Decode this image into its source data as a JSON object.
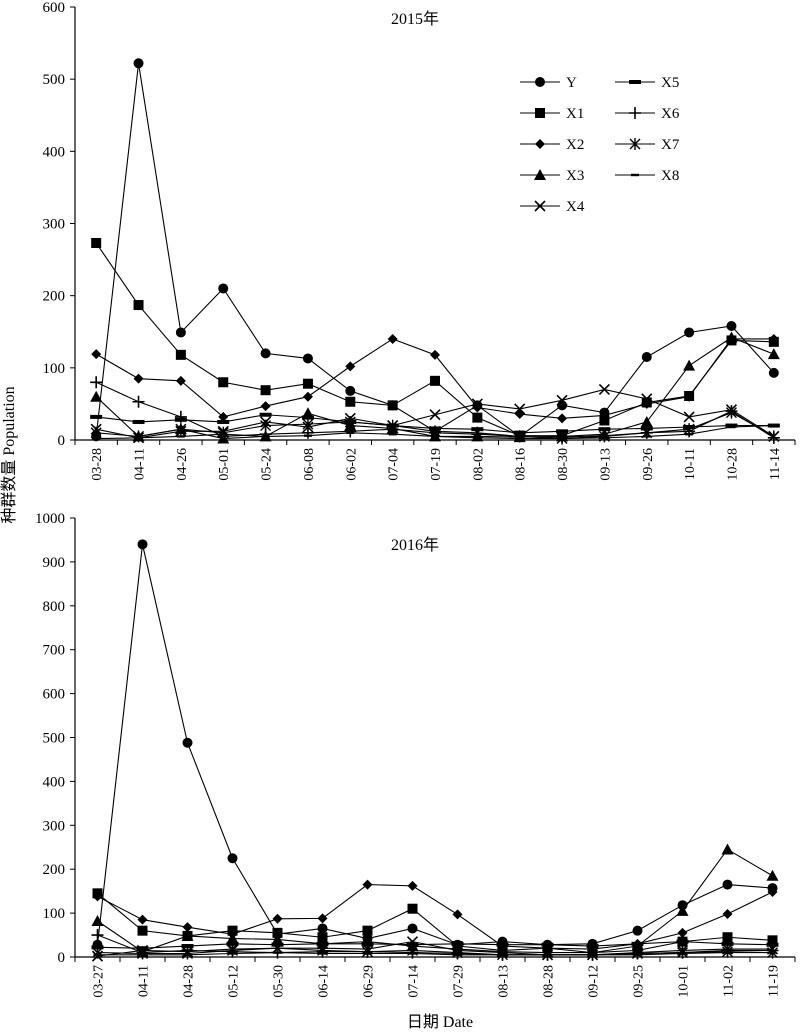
{
  "figure": {
    "ylabel": "种群数量 Population",
    "xlabel": "日期 Date"
  },
  "chart_data": [
    {
      "type": "line",
      "title": "2015年",
      "ylim": [
        0,
        600
      ],
      "yticks": [
        0,
        100,
        200,
        300,
        400,
        500,
        600
      ],
      "categories": [
        "03-28",
        "04-11",
        "04-26",
        "05-01",
        "05-24",
        "06-08",
        "06-02",
        "07-04",
        "07-19",
        "08-02",
        "08-16",
        "08-30",
        "09-13",
        "09-26",
        "10-11",
        "10-28",
        "11-14"
      ],
      "legend": {
        "position": "top-right",
        "columns": [
          [
            "Y",
            "X1",
            "X2",
            "X3",
            "X4"
          ],
          [
            "X5",
            "X6",
            "X7",
            "X8"
          ]
        ]
      },
      "series": [
        {
          "name": "Y",
          "marker": "circle",
          "values": [
            5,
            522,
            149,
            210,
            120,
            113,
            68,
            48,
            12,
            48,
            5,
            48,
            38,
            115,
            149,
            158,
            93
          ]
        },
        {
          "name": "X1",
          "marker": "square",
          "values": [
            273,
            187,
            118,
            80,
            69,
            78,
            53,
            48,
            82,
            31,
            6,
            6,
            27,
            52,
            61,
            138,
            136
          ]
        },
        {
          "name": "X2",
          "marker": "diamond",
          "values": [
            119,
            85,
            82,
            32,
            47,
            60,
            102,
            140,
            118,
            45,
            36,
            30,
            34,
            50,
            60,
            140,
            140
          ]
        },
        {
          "name": "X3",
          "marker": "triangle",
          "values": [
            60,
            5,
            15,
            2,
            5,
            37,
            20,
            16,
            5,
            5,
            4,
            5,
            8,
            25,
            103,
            142,
            119
          ]
        },
        {
          "name": "X4",
          "marker": "x",
          "values": [
            15,
            3,
            12,
            12,
            25,
            18,
            30,
            20,
            35,
            50,
            43,
            55,
            70,
            57,
            32,
            42,
            5
          ]
        },
        {
          "name": "X5",
          "marker": "dash",
          "values": [
            32,
            25,
            28,
            25,
            35,
            31,
            25,
            20,
            16,
            15,
            10,
            12,
            15,
            16,
            18,
            20,
            20
          ]
        },
        {
          "name": "X6",
          "marker": "plus",
          "values": [
            80,
            53,
            32,
            5,
            8,
            10,
            12,
            15,
            10,
            8,
            5,
            4,
            6,
            10,
            12,
            40,
            3
          ]
        },
        {
          "name": "X7",
          "marker": "star",
          "values": [
            10,
            5,
            15,
            10,
            20,
            22,
            25,
            20,
            12,
            10,
            5,
            2,
            5,
            10,
            15,
            38,
            5
          ]
        },
        {
          "name": "X8",
          "marker": "dot",
          "values": [
            2,
            3,
            5,
            8,
            5,
            6,
            10,
            8,
            5,
            3,
            2,
            2,
            3,
            5,
            8,
            18,
            20
          ]
        }
      ]
    },
    {
      "type": "line",
      "title": "2016年",
      "ylim": [
        0,
        1000
      ],
      "yticks": [
        0,
        100,
        200,
        300,
        400,
        500,
        600,
        700,
        800,
        900,
        1000
      ],
      "categories": [
        "03-27",
        "04-11",
        "04-28",
        "05-12",
        "05-30",
        "06-14",
        "06-29",
        "07-14",
        "07-29",
        "08-13",
        "08-28",
        "09-12",
        "09-25",
        "10-01",
        "11-02",
        "11-19"
      ],
      "series": [
        {
          "name": "Y",
          "marker": "circle",
          "values": [
            28,
            940,
            488,
            225,
            52,
            65,
            42,
            65,
            28,
            35,
            28,
            30,
            60,
            118,
            165,
            157
          ]
        },
        {
          "name": "X1",
          "marker": "square",
          "values": [
            145,
            60,
            48,
            60,
            55,
            45,
            60,
            110,
            25,
            15,
            20,
            10,
            15,
            35,
            45,
            38
          ]
        },
        {
          "name": "X2",
          "marker": "diamond",
          "values": [
            138,
            85,
            68,
            52,
            87,
            88,
            165,
            162,
            97,
            25,
            20,
            18,
            30,
            55,
            98,
            148
          ]
        },
        {
          "name": "X3",
          "marker": "triangle",
          "values": [
            82,
            12,
            48,
            42,
            40,
            30,
            35,
            25,
            18,
            12,
            10,
            10,
            25,
            105,
            245,
            185
          ]
        },
        {
          "name": "X4",
          "marker": "x",
          "values": [
            2,
            15,
            12,
            18,
            20,
            20,
            18,
            35,
            15,
            10,
            5,
            5,
            10,
            15,
            18,
            18
          ]
        },
        {
          "name": "X5",
          "marker": "dash",
          "values": [
            22,
            20,
            25,
            30,
            28,
            30,
            30,
            28,
            30,
            28,
            28,
            25,
            30,
            35,
            30,
            28
          ]
        },
        {
          "name": "X6",
          "marker": "plus",
          "values": [
            50,
            10,
            15,
            12,
            10,
            12,
            12,
            10,
            8,
            5,
            5,
            5,
            8,
            10,
            15,
            15
          ]
        },
        {
          "name": "X7",
          "marker": "star",
          "values": [
            10,
            8,
            8,
            15,
            20,
            15,
            12,
            15,
            10,
            5,
            5,
            5,
            8,
            10,
            12,
            10
          ]
        },
        {
          "name": "X8",
          "marker": "dot",
          "values": [
            5,
            5,
            5,
            8,
            10,
            8,
            8,
            8,
            5,
            5,
            5,
            5,
            5,
            8,
            10,
            10
          ]
        }
      ]
    }
  ]
}
